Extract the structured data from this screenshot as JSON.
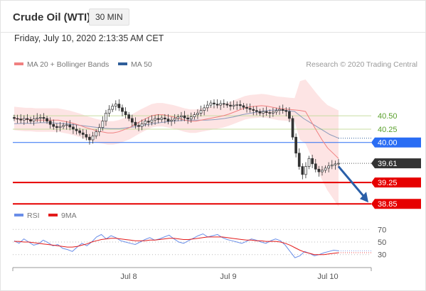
{
  "header": {
    "title": "Crude Oil (WTI)",
    "interval": "30 MIN",
    "datetime": "Friday, July 10, 2020 2:13:35 AM CET"
  },
  "legend": {
    "items": [
      {
        "label": "MA 20 + Bollinger Bands",
        "color": "#f08080"
      },
      {
        "label": "MA 50",
        "color": "#2f5e9a"
      }
    ],
    "credit": "Research © 2020 Trading Central"
  },
  "rsi_legend": {
    "items": [
      {
        "label": "RSI",
        "color": "#6a8ee8"
      },
      {
        "label": "9MA",
        "color": "#e31b1b"
      }
    ]
  },
  "chart_data": [
    {
      "type": "candlestick",
      "title": "Crude Oil (WTI)",
      "ylim": [
        38.6,
        41.3
      ],
      "x_ticks": [
        "Jul 8",
        "Jul 9",
        "Jul 10"
      ],
      "levels": [
        {
          "value": 40.5,
          "label": "40.50",
          "kind": "resistance-green",
          "color": "#5aa02c"
        },
        {
          "value": 40.25,
          "label": "40.25",
          "kind": "resistance-green",
          "color": "#5aa02c"
        },
        {
          "value": 40.0,
          "label": "40.00",
          "kind": "pivot",
          "color": "#2a6df4"
        },
        {
          "value": 39.61,
          "label": "39.61",
          "kind": "last-price",
          "color": "#333333"
        },
        {
          "value": 39.25,
          "label": "39.25",
          "kind": "support",
          "color": "#e60000"
        },
        {
          "value": 38.85,
          "label": "38.85",
          "kind": "support",
          "color": "#e60000"
        }
      ],
      "close_path": [
        40.45,
        40.44,
        40.42,
        40.45,
        40.43,
        40.4,
        40.44,
        40.46,
        40.47,
        40.45,
        40.4,
        40.34,
        40.3,
        40.28,
        40.3,
        40.32,
        40.33,
        40.29,
        40.25,
        40.22,
        40.18,
        40.15,
        40.1,
        40.05,
        40.12,
        40.2,
        40.28,
        40.4,
        40.55,
        40.62,
        40.68,
        40.72,
        40.65,
        40.58,
        40.52,
        40.45,
        40.38,
        40.32,
        40.3,
        40.35,
        40.4,
        40.38,
        40.42,
        40.45,
        40.43,
        40.46,
        40.44,
        40.4,
        40.42,
        40.45,
        40.48,
        40.5,
        40.46,
        40.44,
        40.48,
        40.52,
        40.55,
        40.6,
        40.65,
        40.7,
        40.74,
        40.72,
        40.7,
        40.73,
        40.72,
        40.7,
        40.68,
        40.7,
        40.71,
        40.69,
        40.66,
        40.64,
        40.62,
        40.6,
        40.58,
        40.55,
        40.58,
        40.56,
        40.55,
        40.57,
        40.6,
        40.62,
        40.6,
        40.58,
        40.45,
        40.1,
        39.8,
        39.55,
        39.4,
        39.55,
        39.7,
        39.6,
        39.5,
        39.45,
        39.48,
        39.52,
        39.56,
        39.58,
        39.6,
        39.61
      ],
      "ma20_path": [
        40.45,
        40.44,
        40.43,
        40.43,
        40.42,
        40.42,
        40.42,
        40.42,
        40.42,
        40.4,
        40.38,
        40.35,
        40.32,
        40.28,
        40.25,
        40.22,
        40.2,
        40.18,
        40.18,
        40.2,
        40.24,
        40.28,
        40.34,
        40.4,
        40.45,
        40.5,
        40.52,
        40.52,
        40.5,
        40.48,
        40.45,
        40.42,
        40.4,
        40.4,
        40.42,
        40.44,
        40.46,
        40.48,
        40.5,
        40.53,
        40.57,
        40.61,
        40.65,
        40.67,
        40.68,
        40.69,
        40.68,
        40.66,
        40.64,
        40.63,
        40.62,
        40.61,
        40.6,
        40.58,
        40.4,
        40.22,
        40.05,
        39.9,
        39.8,
        39.7
      ],
      "ma50_path": [
        40.35,
        40.36,
        40.36,
        40.37,
        40.37,
        40.36,
        40.35,
        40.33,
        40.31,
        40.29,
        40.27,
        40.26,
        40.26,
        40.28,
        40.3,
        40.33,
        40.36,
        40.38,
        40.4,
        40.41,
        40.42,
        40.42,
        40.42,
        40.43,
        40.45,
        40.48,
        40.52,
        40.55,
        40.58,
        40.6,
        40.61,
        40.6,
        40.58,
        40.45,
        40.35,
        40.25,
        40.15,
        40.08
      ],
      "forecast_arrow": {
        "from": 39.55,
        "to": 38.85
      }
    },
    {
      "type": "line",
      "title": "RSI",
      "ylim": [
        15,
        85
      ],
      "y_ticks": [
        70,
        50,
        30
      ],
      "series": [
        {
          "name": "RSI",
          "values": [
            52,
            48,
            55,
            50,
            45,
            47,
            53,
            49,
            44,
            46,
            40,
            38,
            35,
            42,
            48,
            44,
            50,
            58,
            62,
            55,
            60,
            57,
            52,
            50,
            48,
            46,
            50,
            54,
            57,
            53,
            55,
            58,
            61,
            55,
            50,
            48,
            52,
            56,
            60,
            63,
            58,
            60,
            62,
            57,
            54,
            52,
            50,
            48,
            51,
            55,
            53,
            50,
            48,
            52,
            55,
            52,
            45,
            35,
            25,
            28,
            35,
            32,
            28,
            30,
            33,
            35,
            37,
            36
          ]
        },
        {
          "name": "9MA",
          "values": [
            51,
            51,
            50,
            50,
            49,
            48,
            47,
            46,
            45,
            44,
            43,
            42,
            42,
            43,
            45,
            47,
            50,
            52,
            54,
            55,
            56,
            56,
            55,
            54,
            53,
            52,
            52,
            52,
            53,
            53,
            54,
            55,
            56,
            56,
            55,
            54,
            54,
            55,
            56,
            57,
            58,
            58,
            58,
            58,
            57,
            56,
            55,
            54,
            53,
            53,
            52,
            52,
            51,
            51,
            51,
            50,
            48,
            45,
            41,
            37,
            34,
            32,
            30,
            30,
            30,
            31,
            32,
            33
          ]
        }
      ]
    }
  ]
}
